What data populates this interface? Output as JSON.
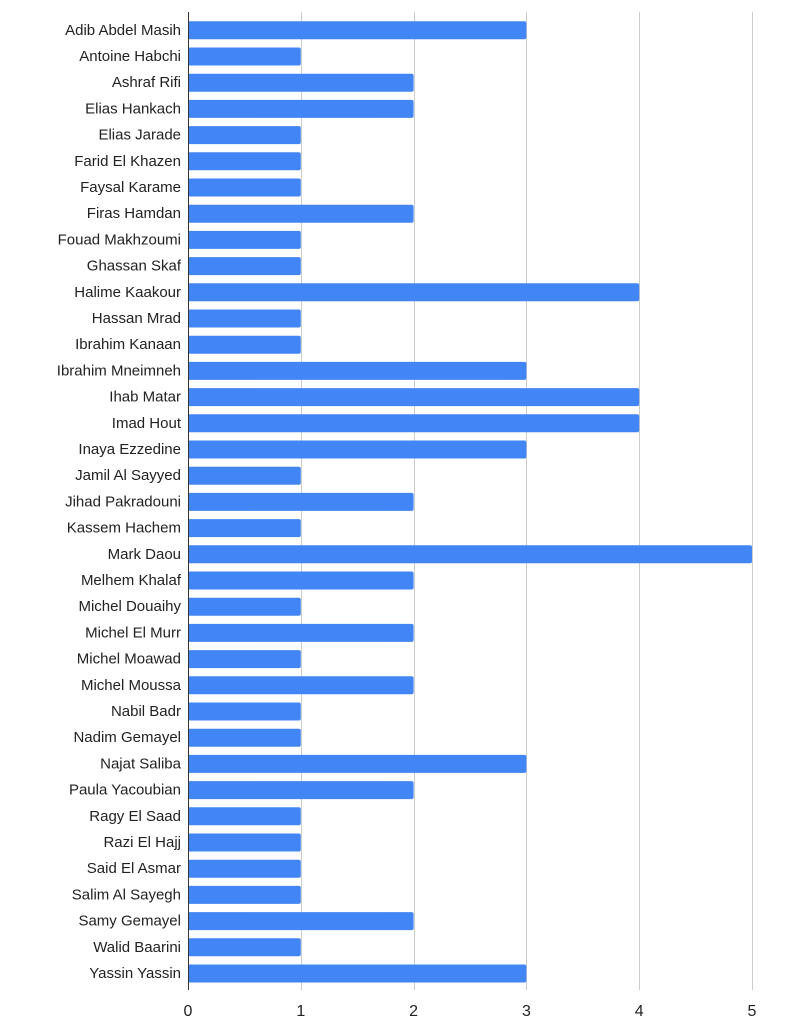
{
  "chart_data": {
    "type": "bar",
    "orientation": "horizontal",
    "categories": [
      "Adib Abdel Masih",
      "Antoine Habchi",
      "Ashraf Rifi",
      "Elias Hankach",
      "Elias Jarade",
      "Farid El Khazen",
      "Faysal Karame",
      "Firas Hamdan",
      "Fouad Makhzoumi",
      "Ghassan Skaf",
      "Halime Kaakour",
      "Hassan Mrad",
      "Ibrahim Kanaan",
      "Ibrahim Mneimneh",
      "Ihab Matar",
      "Imad Hout",
      "Inaya Ezzedine",
      "Jamil Al Sayyed",
      "Jihad Pakradouni",
      "Kassem Hachem",
      "Mark Daou",
      "Melhem Khalaf",
      "Michel Douaihy",
      "Michel El Murr",
      "Michel Moawad",
      "Michel Moussa",
      "Nabil Badr",
      "Nadim Gemayel",
      "Najat Saliba",
      "Paula Yacoubian",
      "Ragy El Saad",
      "Razi El Hajj",
      "Said El Asmar",
      "Salim Al Sayegh",
      "Samy Gemayel",
      "Walid Baarini",
      "Yassin Yassin"
    ],
    "values": [
      3,
      1,
      2,
      2,
      1,
      1,
      1,
      2,
      1,
      1,
      4,
      1,
      1,
      3,
      4,
      4,
      3,
      1,
      2,
      1,
      5,
      2,
      1,
      2,
      1,
      2,
      1,
      1,
      3,
      2,
      1,
      1,
      1,
      1,
      2,
      1,
      3
    ],
    "xlim": [
      0,
      5
    ],
    "xticks": [
      "0",
      "1",
      "2",
      "3",
      "4",
      "5"
    ],
    "grid": true,
    "legend": "none",
    "bar_color": "#4285F4",
    "grid_color": "#cccccc",
    "axis_color": "#333333"
  }
}
